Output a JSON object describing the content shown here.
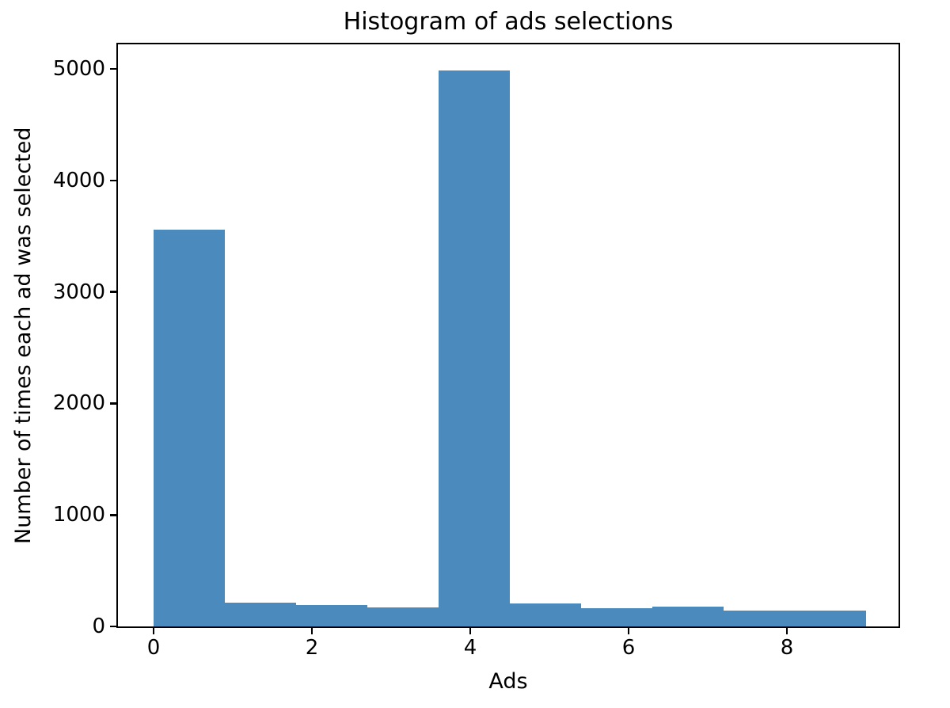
{
  "figure": {
    "background": "#ffffff",
    "text_color": "#000000"
  },
  "chart_data": {
    "type": "bar",
    "subtype": "histogram",
    "title": "Histogram of ads selections",
    "xlabel": "Ads",
    "ylabel": "Number of times each ad was selected",
    "bin_edges": [
      0,
      0.9,
      1.8,
      2.7,
      3.6,
      4.5,
      5.4,
      6.3,
      7.2,
      8.1,
      9.0
    ],
    "values": [
      3560,
      215,
      190,
      170,
      4985,
      205,
      165,
      175,
      140,
      140
    ],
    "xticks": [
      0,
      2,
      4,
      6,
      8
    ],
    "yticks": [
      0,
      1000,
      2000,
      3000,
      4000,
      5000
    ],
    "xlim": [
      -0.45,
      9.45
    ],
    "ylim": [
      0,
      5250
    ],
    "bar_color": "#4a8abc",
    "grid": false,
    "legend": null
  }
}
